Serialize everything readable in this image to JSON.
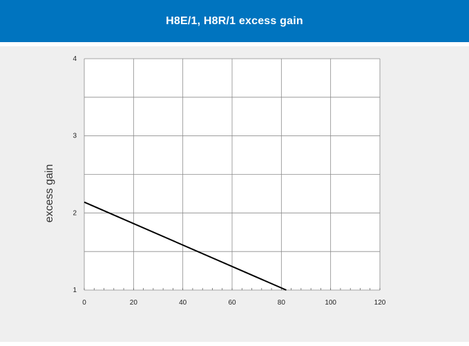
{
  "header": {
    "title": "H8E/1, H8R/1 excess gain"
  },
  "chart_data": {
    "type": "line",
    "title": "H8E/1, H8R/1 excess gain",
    "xlabel": "",
    "ylabel": "excess gain",
    "xlim": [
      0,
      120
    ],
    "ylim": [
      1,
      4
    ],
    "x_ticks": [
      "0",
      "20",
      "40",
      "60",
      "80",
      "100",
      "120"
    ],
    "y_ticks": [
      "1",
      "2",
      "3",
      "4"
    ],
    "grid": true,
    "series": [
      {
        "x": [
          0,
          82
        ],
        "y": [
          2.14,
          1.0
        ]
      }
    ]
  }
}
